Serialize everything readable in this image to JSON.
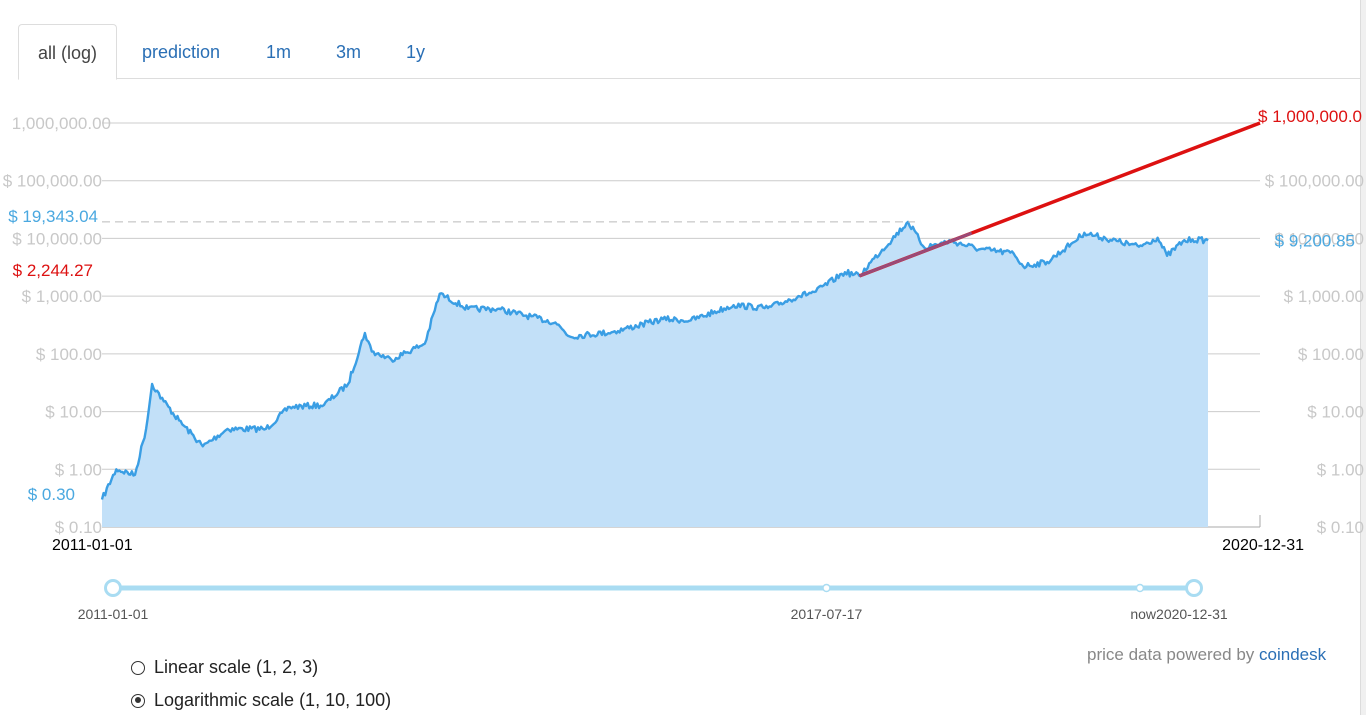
{
  "tabs": [
    {
      "label": "all (log)",
      "active": true
    },
    {
      "label": "prediction",
      "active": false
    },
    {
      "label": "1m",
      "active": false
    },
    {
      "label": "3m",
      "active": false
    },
    {
      "label": "1y",
      "active": false
    }
  ],
  "chart_data": {
    "type": "area",
    "scale": "log",
    "ylim": [
      0.1,
      1000000
    ],
    "y_ticks": [
      "$ 0.10",
      "$ 1.00",
      "$ 10.00",
      "$ 100.00",
      "$ 1,000.00",
      "$ 10,000.00",
      "$ 100,000.00"
    ],
    "y_tick_values": [
      0.1,
      1,
      10,
      100,
      1000,
      10000,
      100000
    ],
    "top_tick_left": "1,000,000.00",
    "xlim": [
      "2011-01-01",
      "2020-12-31"
    ],
    "x_start_label": "2011-01-01",
    "x_end_label": "2020-12-31",
    "series": [
      {
        "color": "#3a9ee4",
        "points": [
          [
            "2011-01-01",
            0.3
          ],
          [
            "2011-02-15",
            1.0
          ],
          [
            "2011-04-15",
            0.8
          ],
          [
            "2011-05-20",
            5
          ],
          [
            "2011-06-08",
            30
          ],
          [
            "2011-07-15",
            15
          ],
          [
            "2011-09-01",
            7
          ],
          [
            "2011-11-15",
            2.5
          ],
          [
            "2012-02-01",
            5
          ],
          [
            "2012-06-01",
            5
          ],
          [
            "2012-08-15",
            12
          ],
          [
            "2012-12-01",
            13
          ],
          [
            "2013-02-15",
            30
          ],
          [
            "2013-04-09",
            230
          ],
          [
            "2013-05-01",
            110
          ],
          [
            "2013-07-01",
            80
          ],
          [
            "2013-10-15",
            150
          ],
          [
            "2013-12-01",
            1100
          ],
          [
            "2014-03-01",
            600
          ],
          [
            "2014-06-01",
            600
          ],
          [
            "2014-12-01",
            350
          ],
          [
            "2015-01-15",
            200
          ],
          [
            "2015-06-01",
            240
          ],
          [
            "2015-11-05",
            400
          ],
          [
            "2016-02-01",
            380
          ],
          [
            "2016-06-15",
            700
          ],
          [
            "2016-10-01",
            620
          ],
          [
            "2017-01-05",
            1000
          ],
          [
            "2017-03-01",
            1200
          ],
          [
            "2017-06-01",
            2600
          ],
          [
            "2017-07-17",
            2244.27
          ],
          [
            "2017-09-01",
            4500
          ],
          [
            "2017-12-17",
            19343.04
          ],
          [
            "2018-02-06",
            7000
          ],
          [
            "2018-05-01",
            9000
          ],
          [
            "2018-08-01",
            6500
          ],
          [
            "2018-11-15",
            5500
          ],
          [
            "2018-12-15",
            3300
          ],
          [
            "2019-03-01",
            3900
          ],
          [
            "2019-05-15",
            8000
          ],
          [
            "2019-06-26",
            12500
          ],
          [
            "2019-09-01",
            10000
          ],
          [
            "2019-12-15",
            7200
          ],
          [
            "2020-02-12",
            10300
          ],
          [
            "2020-03-13",
            5000
          ],
          [
            "2020-05-01",
            8800
          ],
          [
            "2020-06-01",
            9600
          ],
          [
            "2020-07-20",
            9200.85
          ]
        ]
      }
    ],
    "prediction_line": {
      "from": [
        "2017-07-17",
        2244.27
      ],
      "to": [
        "2020-12-31",
        1000000
      ],
      "color": "#dd1111"
    },
    "annotations": {
      "top_right_value": "$ 1,000,000.0",
      "current_value": "$ 9,200.85",
      "peak_value": "$ 19,343.04",
      "pred_start_value": "$ 2,244.27",
      "start_value": "$ 0.30"
    }
  },
  "slider": {
    "start_label": "2011-01-01",
    "mid_label": "2017-07-17",
    "end_label": "now2020-12-31",
    "mid_fraction": 0.66,
    "end_fraction": 0.95
  },
  "scale_options": [
    {
      "label": "Linear scale (1, 2, 3)",
      "checked": false
    },
    {
      "label": "Logarithmic scale (1, 10, 100)",
      "checked": true
    }
  ],
  "credit": {
    "text": "price data powered by",
    "link": "coindesk"
  },
  "colors": {
    "line": "#3a9ee4",
    "fill": "#c2e0f8",
    "prediction": "#dd1111",
    "highlight": "#4aa8e0"
  }
}
